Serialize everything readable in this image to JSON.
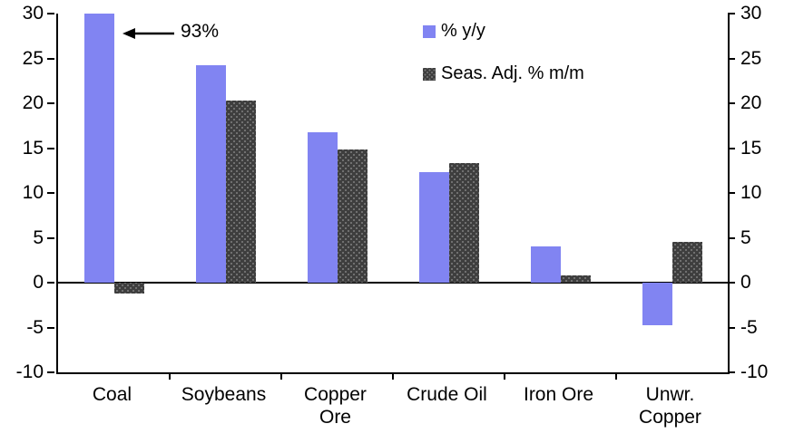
{
  "chart_data": {
    "type": "bar",
    "categories": [
      "Coal",
      "Soybeans",
      "Copper Ore",
      "Crude Oil",
      "Iron Ore",
      "Unwr. Copper"
    ],
    "category_label_lines": [
      [
        "Coal"
      ],
      [
        "Soybeans"
      ],
      [
        "Copper",
        "Ore"
      ],
      [
        "Crude Oil"
      ],
      [
        "Iron Ore"
      ],
      [
        "Unwr.",
        "Copper"
      ]
    ],
    "series": [
      {
        "name": "% y/y",
        "color": "#8184F2",
        "values": [
          93,
          24.2,
          16.8,
          12.3,
          4.0,
          -4.7
        ]
      },
      {
        "name": "Seas. Adj. % m/m",
        "color": "#3E3E3E",
        "values": [
          -1.2,
          20.3,
          14.8,
          13.3,
          0.8,
          4.5
        ]
      }
    ],
    "ylim": [
      -10,
      30
    ],
    "yticks": [
      30,
      25,
      20,
      15,
      10,
      5,
      0,
      -5,
      -10
    ],
    "clip_max": 30,
    "grid": false,
    "legend_position": "top-center",
    "dual_y_axis": true,
    "annotation": {
      "text": "93%",
      "target_category": "Coal",
      "note": "coal y/y bar clipped at axis max"
    }
  }
}
